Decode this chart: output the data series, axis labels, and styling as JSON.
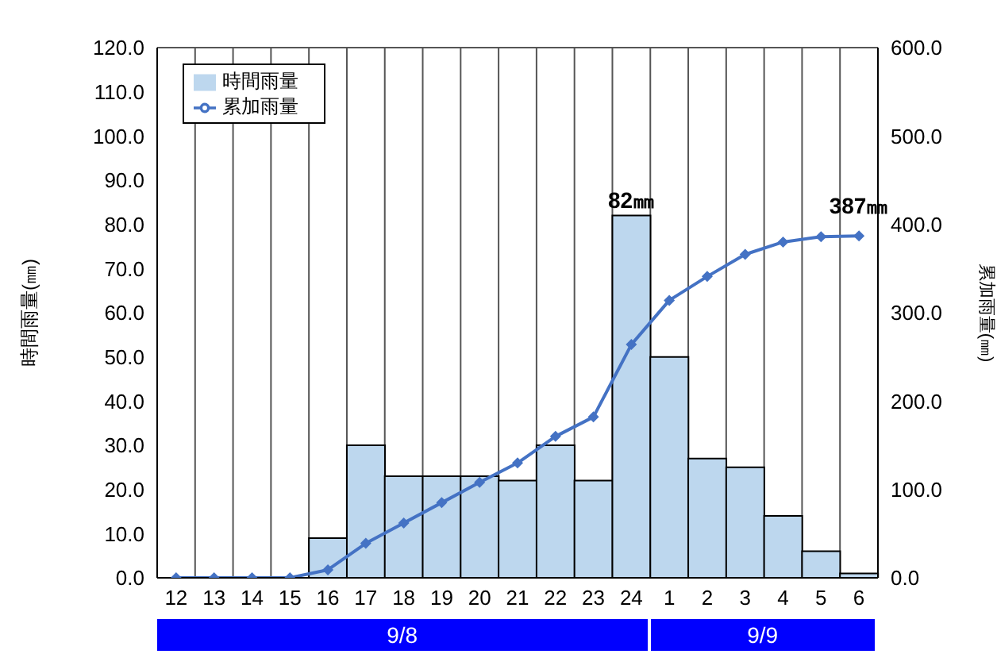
{
  "chart_data": {
    "type": "bar",
    "categories": [
      "12",
      "13",
      "14",
      "15",
      "16",
      "17",
      "18",
      "19",
      "20",
      "21",
      "22",
      "23",
      "24",
      "1",
      "2",
      "3",
      "4",
      "5",
      "6"
    ],
    "ylabel": "時間雨量(㎜)",
    "y2label": "累加雨量(㎜)",
    "series": [
      {
        "name": "時間雨量",
        "color": "#bdd7ee",
        "values": [
          0,
          0,
          0,
          0,
          9,
          30,
          23,
          23,
          23,
          22,
          30,
          22,
          82,
          50,
          27,
          25,
          14,
          6,
          1
        ],
        "value_labels": [
          null,
          null,
          null,
          null,
          null,
          null,
          null,
          null,
          null,
          null,
          null,
          null,
          "82㎜",
          null,
          null,
          null,
          null,
          null,
          null
        ]
      },
      {
        "name": "累加雨量",
        "type": "line",
        "axis": "y2",
        "color": "#4472c4",
        "marker": "diamond",
        "values": [
          0,
          0,
          0,
          0,
          9,
          39,
          62,
          85,
          108,
          130,
          160,
          182,
          264,
          314,
          341,
          366,
          380,
          386,
          387
        ],
        "value_labels": [
          null,
          null,
          null,
          null,
          null,
          null,
          null,
          null,
          null,
          null,
          null,
          null,
          null,
          null,
          null,
          null,
          null,
          null,
          "387㎜"
        ]
      }
    ],
    "ylim": [
      0,
      120
    ],
    "yticks": [
      {
        "value": 0,
        "label": "0.0"
      },
      {
        "value": 10,
        "label": "10.0"
      },
      {
        "value": 20,
        "label": "20.0"
      },
      {
        "value": 30,
        "label": "30.0"
      },
      {
        "value": 40,
        "label": "40.0"
      },
      {
        "value": 50,
        "label": "50.0"
      },
      {
        "value": 60,
        "label": "60.0"
      },
      {
        "value": 70,
        "label": "70.0"
      },
      {
        "value": 80,
        "label": "80.0"
      },
      {
        "value": 90,
        "label": "90.0"
      },
      {
        "value": 100,
        "label": "100.0"
      },
      {
        "value": 110,
        "label": "110.0"
      },
      {
        "value": 120,
        "label": "120.0"
      }
    ],
    "y2lim": [
      0,
      600
    ],
    "y2ticks": [
      {
        "value": 0,
        "label": "0.0"
      },
      {
        "value": 100,
        "label": "100.0"
      },
      {
        "value": 200,
        "label": "200.0"
      },
      {
        "value": 300,
        "label": "300.0"
      },
      {
        "value": 400,
        "label": "400.0"
      },
      {
        "value": 500,
        "label": "500.0"
      },
      {
        "value": 600,
        "label": "600.0"
      }
    ],
    "annotations": [
      "9/8",
      "9/9"
    ],
    "grid": true,
    "legend": "top left"
  }
}
